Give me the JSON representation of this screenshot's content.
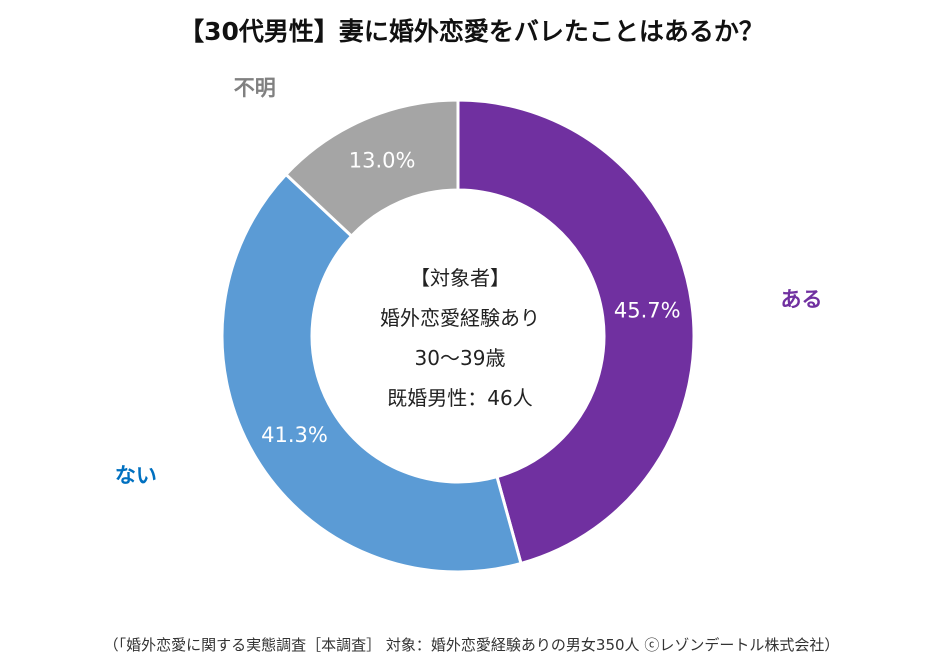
{
  "chart_data": {
    "type": "pie",
    "title": "【30代男性】妻に婚外恋愛をバレたことはあるか？",
    "categories": [
      "ある",
      "ない",
      "不明"
    ],
    "values": [
      45.7,
      41.3,
      13.0
    ],
    "value_labels": [
      "45.7%",
      "41.3%",
      "13.0%"
    ],
    "colors": [
      "#7030A0",
      "#5B9BD5",
      "#A5A5A5"
    ],
    "label_colors": [
      "#7030A0",
      "#0070C0",
      "#808080"
    ],
    "unit": "%"
  },
  "center": {
    "line1": "【対象者】",
    "line2": "婚外恋愛経験あり",
    "line3": "30～39歳",
    "line4": "既婚男性：46人"
  },
  "footer": "（「婚外恋愛に関する実態調査［本調査］ 対象：婚外恋愛経験ありの男女350人 ⓒレゾンデートル株式会社）"
}
